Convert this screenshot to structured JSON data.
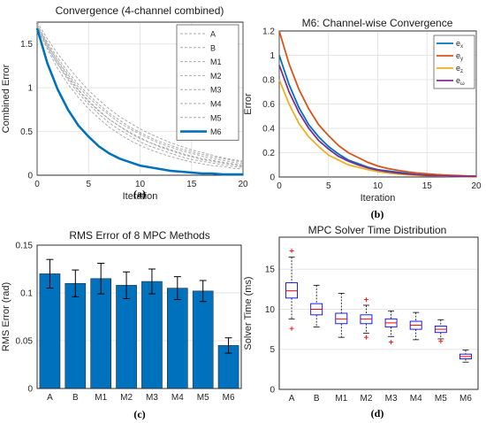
{
  "chart_data": [
    {
      "id": "a",
      "type": "line",
      "panel_label": "(a)",
      "title": "Convergence (4-channel combined)",
      "xlabel": "Iteration",
      "ylabel": "Combined Error",
      "xlim": [
        0,
        20
      ],
      "ylim": [
        0,
        1.75
      ],
      "xticks": [
        0,
        5,
        10,
        15,
        20
      ],
      "yticks": [
        0,
        0.5,
        1,
        1.5
      ],
      "grid": true,
      "legend_position": "top-right",
      "x": [
        0,
        1,
        2,
        3,
        4,
        5,
        6,
        7,
        8,
        9,
        10,
        11,
        12,
        13,
        14,
        15,
        16,
        17,
        18,
        19,
        20
      ],
      "series": [
        {
          "name": "A",
          "color": "#aaaaaa",
          "style": "dashed",
          "values": [
            1.75,
            1.56,
            1.39,
            1.24,
            1.1,
            0.97,
            0.86,
            0.76,
            0.67,
            0.6,
            0.53,
            0.47,
            0.42,
            0.37,
            0.33,
            0.29,
            0.26,
            0.23,
            0.2,
            0.18,
            0.16
          ]
        },
        {
          "name": "B",
          "color": "#aaaaaa",
          "style": "dashed",
          "values": [
            1.72,
            1.52,
            1.34,
            1.18,
            1.04,
            0.92,
            0.81,
            0.71,
            0.63,
            0.55,
            0.49,
            0.43,
            0.38,
            0.34,
            0.3,
            0.27,
            0.24,
            0.21,
            0.19,
            0.17,
            0.15
          ]
        },
        {
          "name": "M1",
          "color": "#aaaaaa",
          "style": "dashed",
          "values": [
            1.7,
            1.49,
            1.31,
            1.15,
            1.01,
            0.89,
            0.78,
            0.69,
            0.6,
            0.53,
            0.47,
            0.41,
            0.36,
            0.32,
            0.28,
            0.25,
            0.22,
            0.19,
            0.17,
            0.15,
            0.13
          ]
        },
        {
          "name": "M2",
          "color": "#aaaaaa",
          "style": "dashed",
          "values": [
            1.73,
            1.5,
            1.3,
            1.13,
            0.98,
            0.85,
            0.74,
            0.64,
            0.56,
            0.48,
            0.42,
            0.37,
            0.32,
            0.28,
            0.24,
            0.21,
            0.18,
            0.16,
            0.14,
            0.12,
            0.1
          ]
        },
        {
          "name": "M3",
          "color": "#aaaaaa",
          "style": "dashed",
          "values": [
            1.68,
            1.46,
            1.27,
            1.11,
            0.97,
            0.84,
            0.73,
            0.64,
            0.56,
            0.49,
            0.43,
            0.37,
            0.33,
            0.29,
            0.25,
            0.22,
            0.19,
            0.17,
            0.15,
            0.13,
            0.11
          ]
        },
        {
          "name": "M4",
          "color": "#aaaaaa",
          "style": "dashed",
          "values": [
            1.71,
            1.47,
            1.27,
            1.09,
            0.94,
            0.81,
            0.7,
            0.6,
            0.52,
            0.45,
            0.38,
            0.33,
            0.29,
            0.25,
            0.21,
            0.18,
            0.16,
            0.14,
            0.12,
            0.1,
            0.09
          ]
        },
        {
          "name": "M5",
          "color": "#aaaaaa",
          "style": "dashed",
          "values": [
            1.69,
            1.44,
            1.22,
            1.04,
            0.89,
            0.76,
            0.65,
            0.55,
            0.47,
            0.4,
            0.34,
            0.29,
            0.25,
            0.21,
            0.18,
            0.15,
            0.13,
            0.11,
            0.1,
            0.08,
            0.07
          ]
        },
        {
          "name": "M6",
          "color": "#0072bd",
          "style": "solid",
          "values": [
            1.68,
            1.28,
            0.98,
            0.75,
            0.57,
            0.44,
            0.33,
            0.25,
            0.19,
            0.15,
            0.11,
            0.09,
            0.07,
            0.05,
            0.04,
            0.03,
            0.02,
            0.02,
            0.01,
            0.01,
            0.01
          ]
        }
      ]
    },
    {
      "id": "b",
      "type": "line",
      "panel_label": "(b)",
      "title": "M6: Channel-wise Convergence",
      "xlabel": "Iteration",
      "ylabel": "Error",
      "xlim": [
        0,
        20
      ],
      "ylim": [
        0,
        1.2
      ],
      "xticks": [
        0,
        5,
        10,
        15,
        20
      ],
      "yticks": [
        0,
        0.2,
        0.4,
        0.6,
        0.8,
        1,
        1.2
      ],
      "grid": true,
      "legend_position": "top-right",
      "x": [
        0,
        1,
        2,
        3,
        4,
        5,
        6,
        7,
        8,
        9,
        10,
        11,
        12,
        13,
        14,
        15,
        16,
        17,
        18,
        19,
        20
      ],
      "series": [
        {
          "name": "e",
          "sub": "x",
          "color": "#0072bd",
          "values": [
            1.0,
            0.76,
            0.57,
            0.43,
            0.33,
            0.25,
            0.19,
            0.14,
            0.11,
            0.08,
            0.06,
            0.05,
            0.04,
            0.03,
            0.02,
            0.015,
            0.01,
            0.008,
            0.006,
            0.005,
            0.004
          ]
        },
        {
          "name": "e",
          "sub": "y",
          "color": "#d95319",
          "values": [
            1.2,
            0.93,
            0.72,
            0.56,
            0.43,
            0.34,
            0.26,
            0.2,
            0.16,
            0.12,
            0.09,
            0.07,
            0.055,
            0.043,
            0.033,
            0.026,
            0.02,
            0.015,
            0.012,
            0.009,
            0.007
          ]
        },
        {
          "name": "e",
          "sub": "z",
          "color": "#edb120",
          "values": [
            0.8,
            0.6,
            0.44,
            0.33,
            0.25,
            0.18,
            0.14,
            0.1,
            0.08,
            0.06,
            0.045,
            0.033,
            0.025,
            0.018,
            0.014,
            0.01,
            0.008,
            0.006,
            0.004,
            0.003,
            0.002
          ]
        },
        {
          "name": "e",
          "sub": "ω",
          "color": "#7e2f8e",
          "values": [
            0.92,
            0.7,
            0.53,
            0.4,
            0.3,
            0.23,
            0.17,
            0.13,
            0.1,
            0.075,
            0.057,
            0.043,
            0.033,
            0.025,
            0.019,
            0.014,
            0.011,
            0.008,
            0.006,
            0.005,
            0.004
          ]
        }
      ]
    },
    {
      "id": "c",
      "type": "bar",
      "panel_label": "(c)",
      "title": "RMS Error of 8 MPC Methods",
      "xlabel": "",
      "ylabel": "RMS Error (rad)",
      "ylim": [
        0,
        0.15
      ],
      "yticks": [
        0,
        0.05,
        0.1,
        0.15
      ],
      "grid": true,
      "categories": [
        "A",
        "B",
        "M1",
        "M2",
        "M3",
        "M4",
        "M5",
        "M6"
      ],
      "values": [
        0.12,
        0.11,
        0.115,
        0.108,
        0.112,
        0.105,
        0.102,
        0.045
      ],
      "errors": [
        0.015,
        0.014,
        0.016,
        0.014,
        0.013,
        0.012,
        0.011,
        0.008
      ],
      "color": "#0072bd"
    },
    {
      "id": "d",
      "type": "box",
      "panel_label": "(d)",
      "title": "MPC Solver Time Distribution",
      "xlabel": "",
      "ylabel": "Solver Time (ms)",
      "ylim": [
        0,
        19
      ],
      "yticks": [
        0,
        5,
        10,
        15
      ],
      "grid": true,
      "categories": [
        "A",
        "B",
        "M1",
        "M2",
        "M3",
        "M4",
        "M5",
        "M6"
      ],
      "boxes": [
        {
          "whislo": 8.8,
          "q1": 11.4,
          "med": 12.3,
          "q3": 13.3,
          "whishi": 16.5,
          "fliers": [
            7.6,
            17.3
          ]
        },
        {
          "whislo": 7.8,
          "q1": 9.3,
          "med": 10.0,
          "q3": 10.7,
          "whishi": 13.0,
          "fliers": []
        },
        {
          "whislo": 6.5,
          "q1": 8.2,
          "med": 8.8,
          "q3": 9.5,
          "whishi": 12.0,
          "fliers": []
        },
        {
          "whislo": 7.0,
          "q1": 8.2,
          "med": 8.8,
          "q3": 9.3,
          "whishi": 10.5,
          "fliers": [
            6.5,
            11.2
          ]
        },
        {
          "whislo": 6.6,
          "q1": 7.8,
          "med": 8.3,
          "q3": 8.8,
          "whishi": 9.8,
          "fliers": [
            5.9
          ]
        },
        {
          "whislo": 6.2,
          "q1": 7.5,
          "med": 8.0,
          "q3": 8.5,
          "whishi": 9.6,
          "fliers": []
        },
        {
          "whislo": 6.3,
          "q1": 7.1,
          "med": 7.5,
          "q3": 7.9,
          "whishi": 8.7,
          "fliers": [
            6.0
          ]
        },
        {
          "whislo": 3.4,
          "q1": 3.8,
          "med": 4.1,
          "q3": 4.4,
          "whishi": 4.9,
          "fliers": []
        }
      ],
      "box_color": "#0000ff",
      "median_color": "#ff0000",
      "flier_color": "#ff0000"
    }
  ]
}
